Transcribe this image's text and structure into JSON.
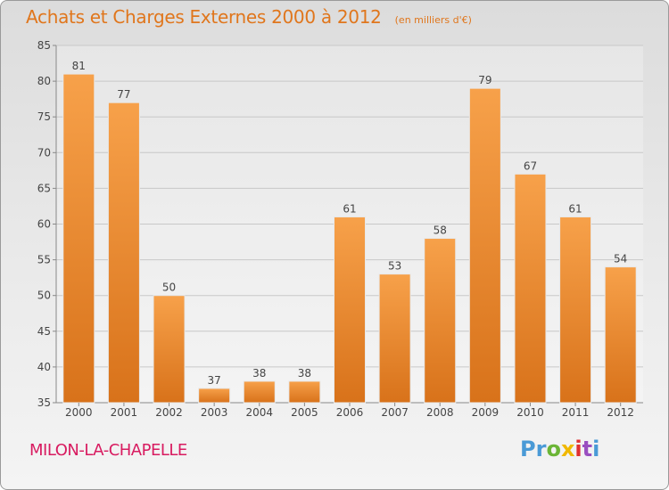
{
  "title": "Achats et Charges Externes 2000 à 2012",
  "subtitle": "(en milliers d'€)",
  "commune": "MILON-LA-CHAPELLE",
  "brand": {
    "letters": [
      {
        "char": "P",
        "color": "#4a9ad6"
      },
      {
        "char": "r",
        "color": "#4a9ad6"
      },
      {
        "char": "o",
        "color": "#6bb536"
      },
      {
        "char": "x",
        "color": "#f0b800"
      },
      {
        "char": "i",
        "color": "#e03030"
      },
      {
        "char": "t",
        "color": "#9a4fc0"
      },
      {
        "char": "i",
        "color": "#4a9ad6"
      }
    ]
  },
  "colors": {
    "bar_top": "#f7a14a",
    "bar_bottom": "#d8721a",
    "title": "#e0761c",
    "commune": "#d81b60",
    "grid": "#c8c8c8"
  },
  "chart_data": {
    "type": "bar",
    "categories": [
      "2000",
      "2001",
      "2002",
      "2003",
      "2004",
      "2005",
      "2006",
      "2007",
      "2008",
      "2009",
      "2010",
      "2011",
      "2012"
    ],
    "values": [
      81,
      77,
      50,
      37,
      38,
      38,
      61,
      53,
      58,
      79,
      67,
      61,
      54
    ],
    "ylim": [
      35,
      85
    ],
    "yticks": [
      35,
      40,
      45,
      50,
      55,
      60,
      65,
      70,
      75,
      80,
      85
    ],
    "grid": true,
    "data_labels": true
  }
}
